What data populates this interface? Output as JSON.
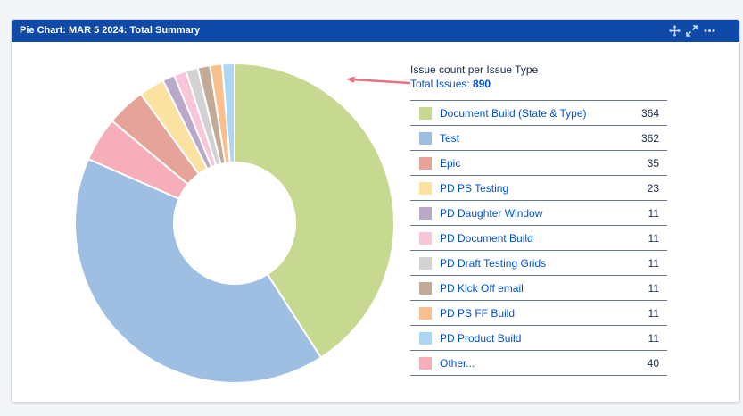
{
  "header": {
    "title": "Pie Chart: MAR 5 2024: Total Summary",
    "icons": [
      "move-icon",
      "expand-icon",
      "more-icon"
    ],
    "background": "#0f4aa8"
  },
  "summary": {
    "heading": "Issue count per Issue Type",
    "total_label": "Total Issues:",
    "total_value": "890"
  },
  "chart_data": {
    "type": "pie",
    "donut": true,
    "total": 890,
    "slices": [
      {
        "label": "Document Build (State & Type)",
        "value": 364,
        "color": "#c7d990"
      },
      {
        "label": "Test",
        "value": 362,
        "color": "#9fbfe2"
      },
      {
        "label": "Epic",
        "value": 35,
        "color": "#e6a39a"
      },
      {
        "label": "PD PS Testing",
        "value": 23,
        "color": "#fbe2a0"
      },
      {
        "label": "PD Daughter Window",
        "value": 11,
        "color": "#b9a8c9"
      },
      {
        "label": "PD Document Build",
        "value": 11,
        "color": "#f7c6d9"
      },
      {
        "label": "PD Draft Testing Grids",
        "value": 11,
        "color": "#d2d2d2"
      },
      {
        "label": "PD Kick Off email",
        "value": 11,
        "color": "#c2aa98"
      },
      {
        "label": "PD PS FF Build",
        "value": 11,
        "color": "#f8c08c"
      },
      {
        "label": "PD Product Build",
        "value": 11,
        "color": "#acd6f2"
      },
      {
        "label": "Other...",
        "value": 40,
        "color": "#f6aebb"
      }
    ],
    "pie_order": [
      0,
      1,
      10,
      2,
      3,
      4,
      5,
      6,
      7,
      8,
      9
    ]
  }
}
